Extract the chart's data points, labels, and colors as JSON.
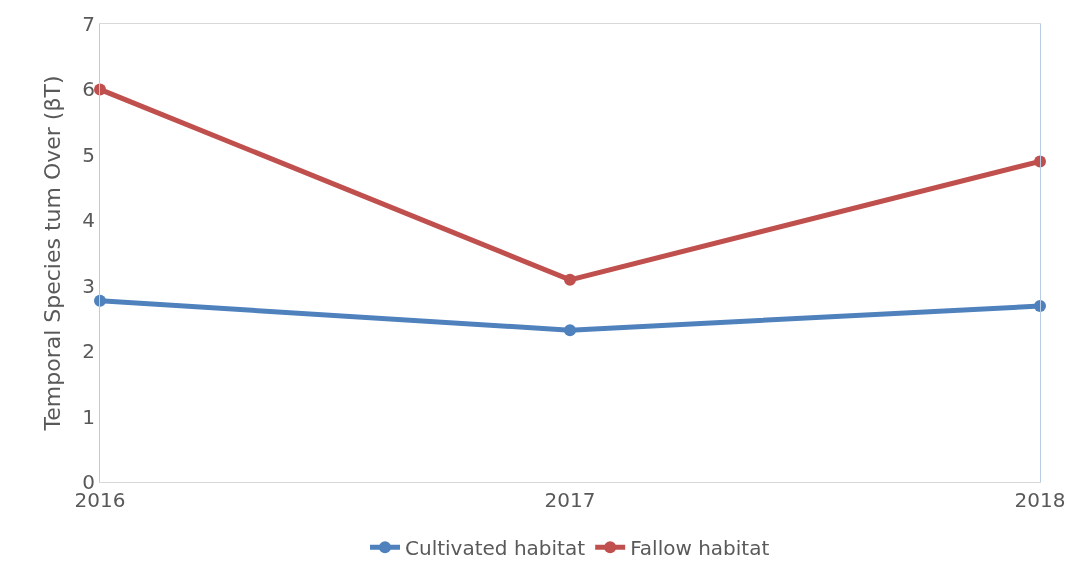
{
  "chart_data": {
    "type": "line",
    "ylabel": "Temporal Species tum Over (βT)",
    "x": [
      2016,
      2017,
      2018
    ],
    "xlim": [
      2016,
      2018
    ],
    "xticks": [
      2016,
      2017,
      2018
    ],
    "ylim": [
      0,
      7
    ],
    "yticks": [
      0,
      1,
      2,
      3,
      4,
      5,
      6,
      7
    ],
    "grid": false,
    "legend": "bottom",
    "marker": "circle",
    "line_style": "solid",
    "series": [
      {
        "name": "Cultivated habitat",
        "color": "#4f81bd",
        "values": [
          2.77,
          2.32,
          2.69
        ]
      },
      {
        "name": "Fallow habitat",
        "color": "#c0504d",
        "values": [
          6.0,
          3.09,
          4.9
        ]
      }
    ]
  }
}
